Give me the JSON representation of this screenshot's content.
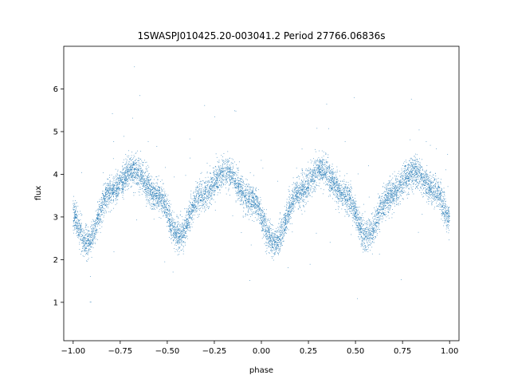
{
  "chart_data": {
    "type": "scatter",
    "title": "1SWASPJ010425.20-003041.2 Period 27766.06836s",
    "xlabel": "phase",
    "ylabel": "flux",
    "xlim": [
      -1.05,
      1.05
    ],
    "ylim": [
      0.1,
      7.0
    ],
    "xticks": [
      -1.0,
      -0.75,
      -0.5,
      -0.25,
      0.0,
      0.25,
      0.5,
      0.75,
      1.0
    ],
    "xtick_labels": [
      "−1.00",
      "−0.75",
      "−0.50",
      "−0.25",
      "0.00",
      "0.25",
      "0.50",
      "0.75",
      "1.00"
    ],
    "yticks": [
      1,
      2,
      3,
      4,
      5,
      6
    ],
    "ytick_labels": [
      "1",
      "2",
      "3",
      "4",
      "5",
      "6"
    ],
    "grid": false,
    "marker_color": "#1f77b4",
    "light_curve": {
      "description_points": [
        {
          "phase": -1.0,
          "flux": 3.0
        },
        {
          "phase": -0.93,
          "flux": 2.4
        },
        {
          "phase": -0.8,
          "flux": 3.6
        },
        {
          "phase": -0.68,
          "flux": 4.1
        },
        {
          "phase": -0.55,
          "flux": 3.5
        },
        {
          "phase": -0.44,
          "flux": 2.55
        },
        {
          "phase": -0.32,
          "flux": 3.5
        },
        {
          "phase": -0.19,
          "flux": 4.05
        },
        {
          "phase": -0.05,
          "flux": 3.4
        },
        {
          "phase": 0.07,
          "flux": 2.4
        },
        {
          "phase": 0.2,
          "flux": 3.6
        },
        {
          "phase": 0.32,
          "flux": 4.1
        },
        {
          "phase": 0.45,
          "flux": 3.5
        },
        {
          "phase": 0.56,
          "flux": 2.55
        },
        {
          "phase": 0.68,
          "flux": 3.5
        },
        {
          "phase": 0.81,
          "flux": 4.05
        },
        {
          "phase": 0.93,
          "flux": 3.6
        },
        {
          "phase": 1.0,
          "flux": 3.0
        }
      ],
      "scatter_sigma": 0.18,
      "outlier_fraction": 0.01,
      "n_points": 9000
    }
  }
}
